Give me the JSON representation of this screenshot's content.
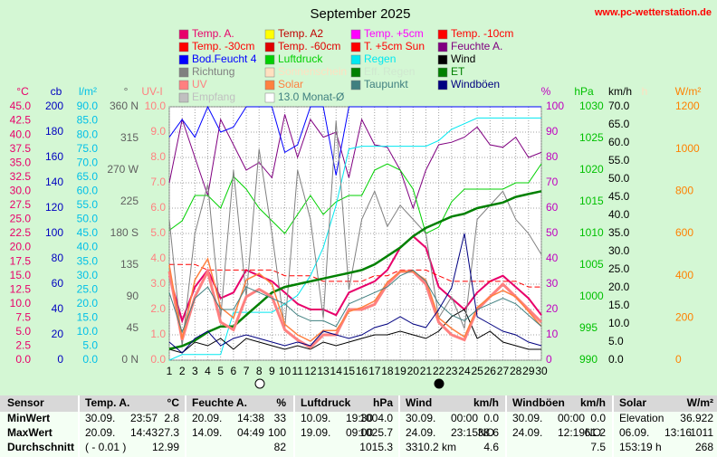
{
  "chart_data": {
    "type": "line",
    "title": "September 2025",
    "source": "www.pc-wetterstation.de",
    "background": "#d4f7d4",
    "grid": true,
    "x": [
      1,
      2,
      3,
      4,
      5,
      6,
      7,
      8,
      9,
      10,
      11,
      12,
      13,
      14,
      15,
      16,
      17,
      18,
      19,
      20,
      21,
      22,
      23,
      24,
      25,
      26,
      27,
      28,
      29,
      30
    ],
    "xlim": [
      1,
      30
    ],
    "xticks": [
      1,
      2,
      3,
      4,
      5,
      6,
      7,
      8,
      9,
      10,
      11,
      12,
      13,
      14,
      15,
      16,
      17,
      18,
      19,
      20,
      21,
      22,
      23,
      24,
      25,
      26,
      27,
      28,
      29,
      30
    ],
    "axes": [
      {
        "label": "°C",
        "side": "left",
        "color": "#e8006a",
        "lim": [
          0,
          45
        ],
        "ticks": [
          {
            "value": 0,
            "label": "0.0"
          },
          {
            "value": 2.5,
            "label": "2.5"
          },
          {
            "value": 5,
            "label": "5.0"
          },
          {
            "value": 7.5,
            "label": "7.5"
          },
          {
            "value": 10,
            "label": "10.0"
          },
          {
            "value": 12.5,
            "label": "12.5"
          },
          {
            "value": 15,
            "label": "15.0"
          },
          {
            "value": 17.5,
            "label": "17.5"
          },
          {
            "value": 20,
            "label": "20.0"
          },
          {
            "value": 22.5,
            "label": "22.5"
          },
          {
            "value": 25,
            "label": "25.0"
          },
          {
            "value": 27.5,
            "label": "27.5"
          },
          {
            "value": 30,
            "label": "30.0"
          },
          {
            "value": 32.5,
            "label": "32.5"
          },
          {
            "value": 35,
            "label": "35.0"
          },
          {
            "value": 37.5,
            "label": "37.5"
          },
          {
            "value": 40,
            "label": "40.0"
          },
          {
            "value": 42.5,
            "label": "42.5"
          },
          {
            "value": 45,
            "label": "45.0"
          }
        ]
      },
      {
        "label": "cb",
        "side": "left",
        "color": "#0000c0",
        "lim": [
          0,
          200
        ],
        "ticks": [
          0,
          20,
          40,
          60,
          80,
          100,
          120,
          140,
          160,
          180,
          200
        ]
      },
      {
        "label": "l/m²",
        "side": "left",
        "color": "#00c0e8",
        "lim": [
          0,
          90
        ],
        "ticks": [
          {
            "value": 0,
            "label": "0.0"
          },
          {
            "value": 5,
            "label": "5.0"
          },
          {
            "value": 10,
            "label": "10.0"
          },
          {
            "value": 15,
            "label": "15.0"
          },
          {
            "value": 20,
            "label": "20.0"
          },
          {
            "value": 25,
            "label": "25.0"
          },
          {
            "value": 30,
            "label": "30.0"
          },
          {
            "value": 35,
            "label": "35.0"
          },
          {
            "value": 40,
            "label": "40.0"
          },
          {
            "value": 45,
            "label": "45.0"
          },
          {
            "value": 50,
            "label": "50.0"
          },
          {
            "value": 55,
            "label": "55.0"
          },
          {
            "value": 60,
            "label": "60.0"
          },
          {
            "value": 65,
            "label": "65.0"
          },
          {
            "value": 70,
            "label": "70.0"
          },
          {
            "value": 75,
            "label": "75.0"
          },
          {
            "value": 80,
            "label": "80.0"
          },
          {
            "value": 85,
            "label": "85.0"
          },
          {
            "value": 90,
            "label": "90.0"
          }
        ]
      },
      {
        "label": "°",
        "side": "left",
        "color": "#606060",
        "lim": [
          0,
          360
        ],
        "ticks": [
          {
            "value": 0,
            "label": "0 N"
          },
          45,
          90,
          135,
          {
            "value": 180,
            "label": "180 S"
          },
          225,
          {
            "value": 270,
            "label": "270 W"
          },
          315,
          {
            "value": 360,
            "label": "360 N"
          }
        ]
      },
      {
        "label": "UV-I",
        "side": "left",
        "color": "#ff8080",
        "lim": [
          0,
          10
        ],
        "ticks": [
          {
            "value": 0,
            "label": "0.0"
          },
          {
            "value": 1,
            "label": "1.0"
          },
          {
            "value": 2,
            "label": "2.0"
          },
          {
            "value": 3,
            "label": "3.0"
          },
          {
            "value": 4,
            "label": "4.0"
          },
          {
            "value": 5,
            "label": "5.0"
          },
          {
            "value": 6,
            "label": "6.0"
          },
          {
            "value": 7,
            "label": "7.0"
          },
          {
            "value": 8,
            "label": "8.0"
          },
          {
            "value": 9,
            "label": "9.0"
          },
          {
            "value": 10,
            "label": "10.0"
          }
        ]
      },
      {
        "label": "%",
        "side": "right",
        "color": "#c000c0",
        "lim": [
          0,
          100
        ],
        "ticks": [
          0,
          10,
          20,
          30,
          40,
          50,
          60,
          70,
          80,
          90,
          100
        ]
      },
      {
        "label": "hPa",
        "side": "right",
        "color": "#00c000",
        "lim": [
          990,
          1030
        ],
        "ticks": [
          990,
          995,
          1000,
          1005,
          1010,
          1015,
          1020,
          1025,
          1030
        ]
      },
      {
        "label": "km/h",
        "side": "right",
        "color": "#000000",
        "lim": [
          0,
          70
        ],
        "ticks": [
          {
            "value": 0,
            "label": "0.0"
          },
          {
            "value": 5,
            "label": "5.0"
          },
          {
            "value": 10,
            "label": "10.0"
          },
          {
            "value": 15,
            "label": "15.0"
          },
          {
            "value": 20,
            "label": "20.0"
          },
          {
            "value": 25,
            "label": "25.0"
          },
          {
            "value": 30,
            "label": "30.0"
          },
          {
            "value": 35,
            "label": "35.0"
          },
          {
            "value": 40,
            "label": "40.0"
          },
          {
            "value": 45,
            "label": "45.0"
          },
          {
            "value": 50,
            "label": "50.0"
          },
          {
            "value": 55,
            "label": "55.0"
          },
          {
            "value": 60,
            "label": "60.0"
          },
          {
            "value": 65,
            "label": "65.0"
          },
          {
            "value": 70,
            "label": "70.0"
          }
        ]
      },
      {
        "label": "h",
        "side": "right",
        "color": "#ffe0c0",
        "lim": [
          0,
          12
        ],
        "ticks": []
      },
      {
        "label": "W/m²",
        "side": "right",
        "color": "#ff8000",
        "lim": [
          0,
          1200
        ],
        "ticks": [
          0,
          200,
          400,
          600,
          800,
          1000,
          1200
        ]
      }
    ],
    "grid_axis": "%",
    "series": [
      {
        "name": "Temp. A.",
        "color": "#e8006a",
        "axis": "°C",
        "width": 2,
        "values": [
          15,
          7,
          13,
          16,
          11,
          12,
          16,
          15,
          14,
          12,
          10,
          9,
          9,
          8,
          12,
          13,
          14,
          16,
          20,
          22,
          20,
          13,
          11,
          9,
          12,
          14,
          15,
          13,
          11,
          8
        ]
      },
      {
        "name": "Temp. A2",
        "color": "#ffff00",
        "text_color": "#c00000"
      },
      {
        "name": "Temp. +5cm",
        "color": "#ff00ff"
      },
      {
        "name": "Temp. -10cm",
        "color": "#ff0000",
        "axis": "°C",
        "width": 1,
        "dashed": true,
        "values": [
          17,
          17,
          17,
          16,
          16,
          16,
          16,
          16,
          16,
          15,
          15,
          15,
          14,
          14,
          14,
          14,
          15,
          15,
          16,
          16,
          16,
          15,
          14,
          14,
          14,
          14,
          14,
          14,
          13,
          13
        ]
      },
      {
        "name": "Temp. -30cm",
        "color": "#ff0000"
      },
      {
        "name": "Temp. -60cm",
        "color": "#e00000"
      },
      {
        "name": "T. +5cm Sun",
        "color": "#ff0000"
      },
      {
        "name": "Feuchte A.",
        "color": "#800080",
        "axis": "%",
        "width": 1,
        "values": [
          70,
          95,
          80,
          65,
          95,
          85,
          75,
          78,
          72,
          97,
          80,
          95,
          88,
          90,
          72,
          95,
          85,
          84,
          75,
          60,
          75,
          85,
          86,
          88,
          92,
          85,
          84,
          88,
          80,
          82
        ]
      },
      {
        "name": "Bod.Feucht 4",
        "color": "#0000ff",
        "axis": "%",
        "width": 1,
        "values": [
          88,
          95,
          88,
          100,
          90,
          92,
          100,
          100,
          100,
          82,
          85,
          100,
          100,
          73,
          100,
          100,
          100,
          100,
          100,
          100,
          100,
          100,
          100,
          100,
          100,
          100,
          100,
          100,
          100,
          100
        ]
      },
      {
        "name": "Luftdruck",
        "color": "#00d000",
        "axis": "hPa",
        "width": 1,
        "values": [
          1010.5,
          1012,
          1016,
          1016,
          1014,
          1019,
          1017,
          1014,
          1012,
          1010,
          1013,
          1016,
          1013,
          1015,
          1016,
          1016,
          1020,
          1021,
          1020,
          1017,
          1010,
          1011,
          1015,
          1017,
          1017,
          1017,
          1017,
          1018,
          1018,
          1021
        ]
      },
      {
        "name": "Regen",
        "color": "#00e8f0",
        "axis": "l/m²",
        "width": 1,
        "values": [
          0,
          2,
          2,
          2,
          2,
          17,
          17,
          17,
          17,
          20,
          23,
          30,
          40,
          55,
          75,
          76,
          76,
          76,
          76,
          76,
          76,
          78,
          82,
          84,
          86,
          86,
          86,
          86,
          86,
          86
        ]
      },
      {
        "name": "Wind",
        "color": "#000000",
        "axis": "km/h",
        "width": 1,
        "values": [
          3,
          2,
          5,
          4,
          6,
          3,
          6,
          5,
          4,
          3,
          4,
          3,
          5,
          4,
          5,
          6,
          7,
          7,
          8,
          7,
          6,
          8,
          12,
          14,
          6,
          8,
          5,
          4,
          3,
          3
        ]
      },
      {
        "name": "Richtung",
        "color": "#808080",
        "axis": "°",
        "width": 1,
        "values": [
          200,
          20,
          180,
          250,
          60,
          270,
          90,
          300,
          180,
          45,
          270,
          200,
          60,
          340,
          100,
          200,
          240,
          190,
          220,
          200,
          180,
          60,
          90,
          45,
          200,
          220,
          240,
          200,
          180,
          150
        ]
      },
      {
        "name": "Sonnenschein",
        "color": "#ffe0c0"
      },
      {
        "name": "Eff. Regen",
        "color": "#008000",
        "text_color": "#d0e8d0"
      },
      {
        "name": "ET",
        "color": "#008000",
        "axis": "l/m²",
        "width": 2.5,
        "values": [
          4,
          5,
          7,
          10,
          12,
          12,
          16,
          20,
          24,
          26,
          27,
          28,
          29,
          30,
          31,
          32,
          34,
          37,
          40,
          44,
          47,
          49,
          51,
          52,
          54,
          55,
          56,
          58,
          59,
          60
        ]
      },
      {
        "name": "UV",
        "color": "#ff8080",
        "axis": "UV-I",
        "width": 3,
        "values": [
          3.5,
          0.8,
          2.5,
          3.5,
          1.5,
          1.2,
          2.5,
          2.8,
          2.5,
          1.2,
          0.8,
          0.5,
          1,
          1,
          2,
          2,
          2.2,
          3,
          3.5,
          3.5,
          3,
          1.5,
          1,
          0.8,
          2,
          2.5,
          3,
          2.5,
          2,
          1.5
        ]
      },
      {
        "name": "Solar",
        "color": "#ff8040",
        "axis": "W/m²",
        "width": 1.5,
        "values": [
          450,
          100,
          380,
          480,
          250,
          200,
          380,
          410,
          360,
          170,
          120,
          90,
          140,
          140,
          230,
          250,
          280,
          370,
          420,
          420,
          380,
          200,
          150,
          110,
          250,
          300,
          330,
          300,
          230,
          160
        ]
      },
      {
        "name": "Taupunkt",
        "color": "#408080",
        "axis": "°C",
        "width": 1,
        "values": [
          12,
          5,
          11,
          13,
          9,
          9,
          13,
          12,
          11,
          10,
          8,
          7,
          7,
          6,
          10,
          11,
          12,
          13,
          15,
          16,
          14,
          10,
          8,
          7,
          9,
          10,
          11,
          10,
          8,
          6
        ]
      },
      {
        "name": "Windböen",
        "color": "#000080",
        "axis": "km/h",
        "width": 1,
        "values": [
          5,
          2,
          6,
          8,
          4,
          6,
          7,
          6,
          5,
          4,
          5,
          4,
          8,
          7,
          6,
          7,
          9,
          10,
          12,
          10,
          9,
          14,
          20,
          35,
          12,
          10,
          8,
          7,
          5,
          4
        ]
      },
      {
        "name": "Empfang",
        "color": "#c0c0c0"
      },
      {
        "name": "13.0 Monat-Ø",
        "color": "#ffffff",
        "text_color": "#408080"
      }
    ]
  },
  "table": {
    "header": [
      {
        "name": "Sensor"
      },
      {
        "name": "Temp. A.",
        "unit": "°C"
      },
      {
        "name": "Feuchte A.",
        "unit": "%"
      },
      {
        "name": "Luftdruck",
        "unit": "hPa"
      },
      {
        "name": "Wind",
        "unit": "km/h"
      },
      {
        "name": "Windböen",
        "unit": "km/h"
      },
      {
        "name": "Solar",
        "unit": "W/m²"
      }
    ],
    "rows": [
      {
        "label": "MinWert",
        "cells": [
          [
            "30.09.",
            "23:57",
            "2.8"
          ],
          [
            "20.09.",
            "14:38",
            "33"
          ],
          [
            "10.09.",
            "19:30",
            "1004.0"
          ],
          [
            "30.09.",
            "00:00",
            "0.0"
          ],
          [
            "30.09.",
            "00:00",
            "0.0"
          ],
          [
            "Elevation",
            "36.922"
          ]
        ]
      },
      {
        "label": "MaxWert",
        "cells": [
          [
            "20.09.",
            "14:43",
            "27.3"
          ],
          [
            "14.09.",
            "04:49",
            "100"
          ],
          [
            "19.09.",
            "09:00",
            "1025.7"
          ],
          [
            "24.09.",
            "23:15NO",
            "38.6"
          ],
          [
            "24.09.",
            "12:19NO",
            "61.2"
          ],
          [
            "06.09.",
            "13:16",
            "1011"
          ]
        ]
      },
      {
        "label": "Durchschnitt",
        "cells": [
          [
            "( - 0.01 )",
            "12.99"
          ],
          [
            "82"
          ],
          [
            "1015.3"
          ],
          [
            "3310.2 km",
            "4.6"
          ],
          [
            "7.5"
          ],
          [
            "153:19 h",
            "268"
          ]
        ]
      }
    ]
  }
}
